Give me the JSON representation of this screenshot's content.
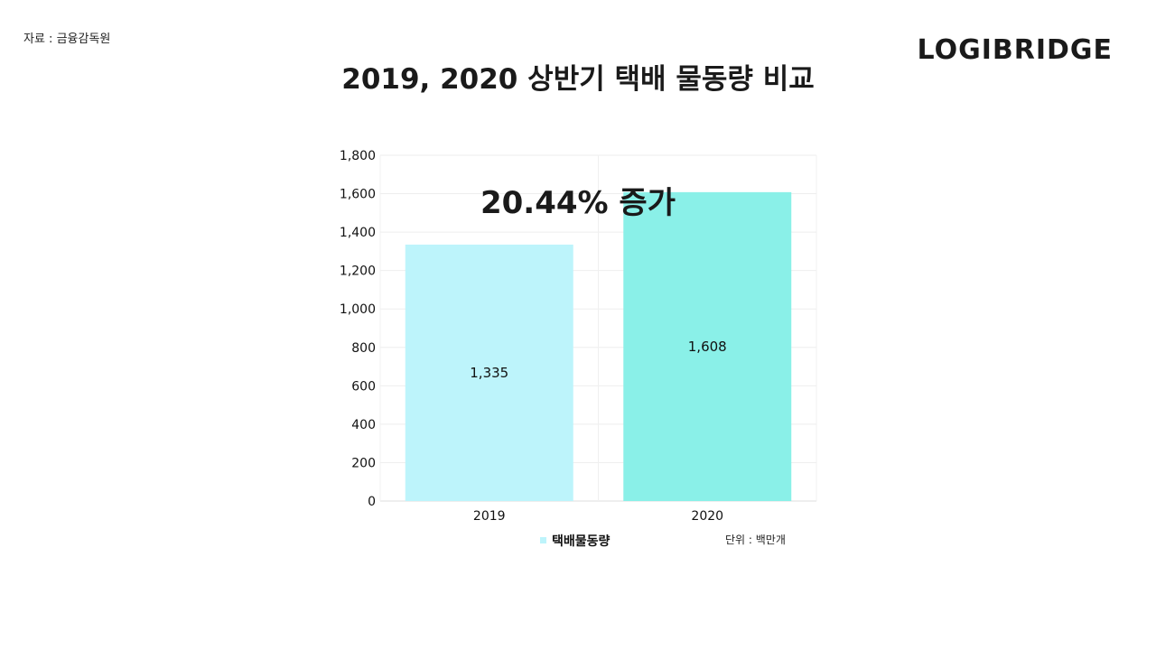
{
  "header": {
    "source": "자료 : 금융감독원",
    "brand": "LOGIBRIDGE"
  },
  "chart_data": {
    "type": "bar",
    "title": "2019, 2020 상반기 택배 물동량 비교",
    "categories": [
      "2019",
      "2020"
    ],
    "series": [
      {
        "name": "택배물동량",
        "values": [
          1335,
          1608
        ],
        "colors": [
          "#bdf4fb",
          "#8af0e8"
        ]
      }
    ],
    "data_labels": [
      "1,335",
      "1,608"
    ],
    "yticks": [
      0,
      200,
      400,
      600,
      800,
      1000,
      1200,
      1400,
      1600,
      1800
    ],
    "ytick_labels": [
      "0",
      "200",
      "400",
      "600",
      "800",
      "1,000",
      "1,200",
      "1,400",
      "1,600",
      "1,800"
    ],
    "ylim": [
      0,
      1800
    ],
    "xlabel": "",
    "ylabel": "",
    "annotation": "20.44% 증가",
    "unit": "단위 : 백만개",
    "legend_position": "bottom",
    "grid": true,
    "legend_color": "#bdf4fb"
  }
}
